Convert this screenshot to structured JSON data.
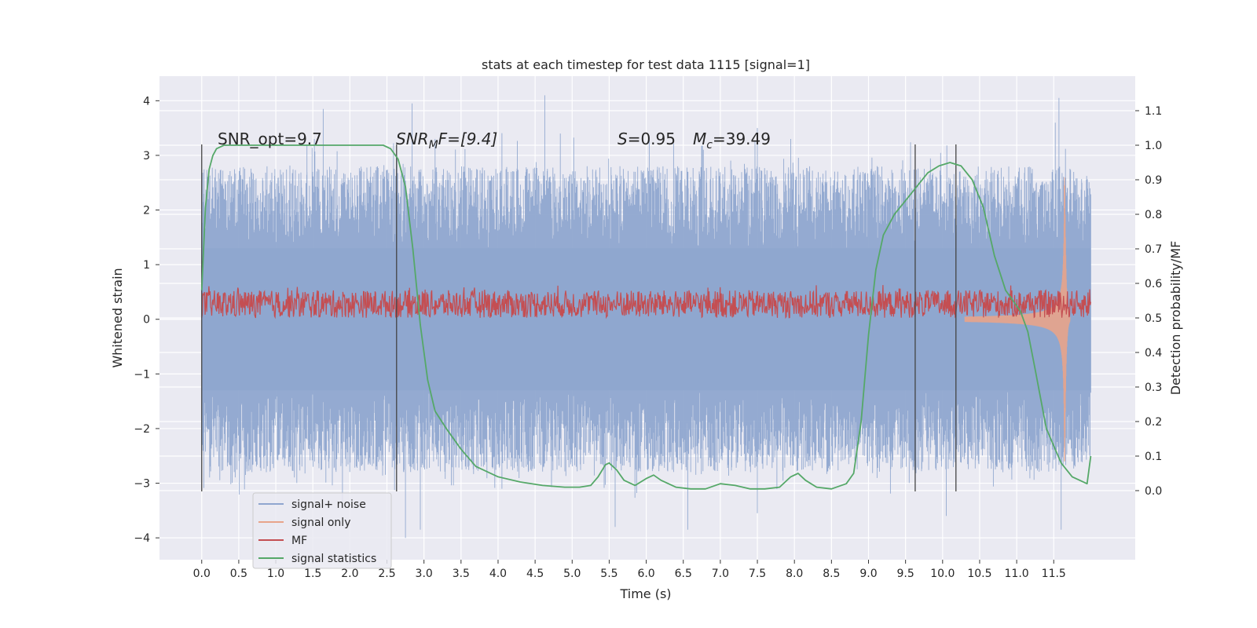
{
  "chart_data": {
    "type": "line",
    "title": "stats at each timestep for test data 1115 [signal=1]",
    "xlabel": "Time (s)",
    "ylabel_left": "Whitened strain",
    "ylabel_right": "Detection probability/MF",
    "xlim": [
      -0.57,
      12.6
    ],
    "ylim_left": [
      -4.4,
      4.45
    ],
    "ylim_right": [
      -0.2,
      1.2
    ],
    "xticks": [
      0.0,
      0.5,
      1.0,
      1.5,
      2.0,
      2.5,
      3.0,
      3.5,
      4.0,
      4.5,
      5.0,
      5.5,
      6.0,
      6.5,
      7.0,
      7.5,
      8.0,
      8.5,
      9.0,
      9.5,
      10.0,
      10.5,
      11.0,
      11.5
    ],
    "xtick_labels": [
      "0.0",
      "0.5",
      "1.0",
      "1.5",
      "2.0",
      "2.5",
      "3.0",
      "3.5",
      "4.0",
      "4.5",
      "5.0",
      "5.5",
      "6.0",
      "6.5",
      "7.0",
      "7.5",
      "8.0",
      "8.5",
      "9.0",
      "9.5",
      "10.0",
      "10.5",
      "11.0",
      "11.5"
    ],
    "yticks_left": [
      4,
      3,
      2,
      1,
      0,
      -1,
      -2,
      -3,
      -4
    ],
    "ytick_labels_left": [
      "4",
      "3",
      "2",
      "1",
      "0",
      "−1",
      "−2",
      "−3",
      "−4"
    ],
    "yticks_right": [
      1.1,
      1.0,
      0.9,
      0.8,
      0.7,
      0.6,
      0.5,
      0.4,
      0.3,
      0.2,
      0.1,
      0.0
    ],
    "ytick_labels_right": [
      "1.1",
      "1.0",
      "0.9",
      "0.8",
      "0.7",
      "0.6",
      "0.5",
      "0.4",
      "0.3",
      "0.2",
      "0.1",
      "0.0"
    ],
    "grid": true,
    "legend_position": "lower-left",
    "annotations": {
      "snr_opt": "SNR_opt=9.7",
      "snr_mf": "SNR",
      "snr_mf_sub": "M",
      "snr_mf_rest": "F=[9.4]",
      "s_label": "S",
      "s_value": "=0.95",
      "mc_label": "M",
      "mc_sub": "c",
      "mc_value": "=39.49"
    },
    "vlines": {
      "x": [
        0.0,
        2.63,
        9.63,
        10.18
      ],
      "range": [
        -3.15,
        3.2
      ],
      "color": "#444444"
    },
    "series": [
      {
        "name": "signal+ noise",
        "color": "#8fa6cf",
        "x_range": [
          0.0,
          12.0
        ],
        "envelope": [
          2.1,
          -2.1
        ],
        "peaks": [
          {
            "x": 1.64,
            "y": 3.85
          },
          {
            "x": 1.52,
            "y": 3.3
          },
          {
            "x": 1.42,
            "y": 3.2
          },
          {
            "x": 2.84,
            "y": 3.95
          },
          {
            "x": 3.15,
            "y": 3.3
          },
          {
            "x": 4.63,
            "y": 4.1
          },
          {
            "x": 4.84,
            "y": 3.4
          },
          {
            "x": 6.04,
            "y": 3.35
          },
          {
            "x": 7.5,
            "y": 3.5
          },
          {
            "x": 7.95,
            "y": 3.3
          },
          {
            "x": 11.57,
            "y": 4.05
          },
          {
            "x": 11.52,
            "y": 3.6
          },
          {
            "x": 2.75,
            "y": -4.0
          },
          {
            "x": 2.95,
            "y": -3.85
          },
          {
            "x": 5.58,
            "y": -3.8
          },
          {
            "x": 6.56,
            "y": -3.85
          },
          {
            "x": 7.5,
            "y": -3.55
          },
          {
            "x": 10.05,
            "y": -3.6
          },
          {
            "x": 1.9,
            "y": -3.35
          },
          {
            "x": 11.6,
            "y": -3.85
          }
        ]
      },
      {
        "name": "signal only",
        "color": "#e8a48a",
        "chirp": {
          "start": 10.3,
          "merger": 11.65,
          "end": 11.72,
          "peak_amplitude": 2.6
        }
      },
      {
        "name": "MF",
        "color": "#c44e52",
        "x_range": [
          0.0,
          12.0
        ],
        "baseline": 0.52,
        "spread": [
          0.5,
          0.58
        ]
      },
      {
        "name": "signal statistics",
        "color": "#55a868",
        "x": [
          0.0,
          0.05,
          0.1,
          0.15,
          0.2,
          0.3,
          0.5,
          1.0,
          1.5,
          2.0,
          2.3,
          2.45,
          2.55,
          2.65,
          2.75,
          2.85,
          2.95,
          3.05,
          3.15,
          3.3,
          3.5,
          3.7,
          4.0,
          4.3,
          4.6,
          4.9,
          5.1,
          5.25,
          5.35,
          5.45,
          5.5,
          5.6,
          5.7,
          5.85,
          6.0,
          6.1,
          6.2,
          6.4,
          6.6,
          6.8,
          7.0,
          7.2,
          7.4,
          7.6,
          7.8,
          7.95,
          8.05,
          8.15,
          8.3,
          8.5,
          8.7,
          8.8,
          8.9,
          9.0,
          9.1,
          9.2,
          9.35,
          9.5,
          9.65,
          9.8,
          9.95,
          10.1,
          10.25,
          10.4,
          10.55,
          10.7,
          10.85,
          10.95,
          11.05,
          11.15,
          11.25,
          11.4,
          11.6,
          11.75,
          11.85,
          11.95,
          12.0
        ],
        "y": [
          0.58,
          0.82,
          0.93,
          0.97,
          0.99,
          1.0,
          1.0,
          1.0,
          1.0,
          1.0,
          1.0,
          1.0,
          0.99,
          0.96,
          0.88,
          0.7,
          0.48,
          0.32,
          0.23,
          0.18,
          0.12,
          0.07,
          0.04,
          0.025,
          0.015,
          0.01,
          0.01,
          0.015,
          0.04,
          0.075,
          0.08,
          0.06,
          0.03,
          0.015,
          0.035,
          0.045,
          0.03,
          0.01,
          0.005,
          0.005,
          0.02,
          0.015,
          0.005,
          0.005,
          0.01,
          0.04,
          0.05,
          0.03,
          0.01,
          0.005,
          0.02,
          0.05,
          0.2,
          0.45,
          0.64,
          0.74,
          0.8,
          0.84,
          0.88,
          0.92,
          0.94,
          0.95,
          0.94,
          0.9,
          0.82,
          0.68,
          0.58,
          0.55,
          0.52,
          0.46,
          0.35,
          0.18,
          0.08,
          0.04,
          0.03,
          0.02,
          0.1
        ]
      }
    ]
  }
}
